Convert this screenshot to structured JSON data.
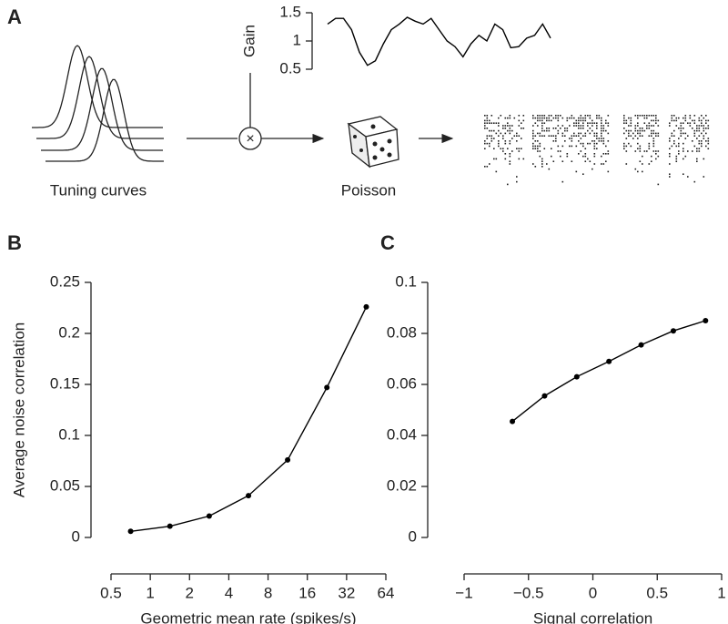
{
  "panel_labels": [
    "A",
    "B",
    "C"
  ],
  "schematic": {
    "tuning_label": "Tuning curves",
    "poisson_label": "Poisson",
    "multiply_symbol": "×"
  },
  "chart_data": [
    {
      "type": "line",
      "ylabel": "Gain",
      "ylim": [
        0.5,
        1.5
      ],
      "yticks": [
        0.5,
        1,
        1.5
      ],
      "color": "#000000",
      "values": [
        1.3,
        1.4,
        1.4,
        1.2,
        0.8,
        0.57,
        0.65,
        0.95,
        1.2,
        1.3,
        1.42,
        1.35,
        1.3,
        1.4,
        1.2,
        1.0,
        0.9,
        0.72,
        0.95,
        1.1,
        1.0,
        1.3,
        1.2,
        0.88,
        0.9,
        1.05,
        1.1,
        1.3,
        1.05
      ]
    },
    {
      "type": "line",
      "xlabel": "Geometric mean rate (spikes/s)",
      "ylabel": "Average noise correlation",
      "xscale": "log",
      "xlim": [
        0.5,
        64
      ],
      "xticks": [
        0.5,
        1,
        2,
        4,
        8,
        16,
        32,
        64
      ],
      "ylim": [
        0,
        0.25
      ],
      "yticks": [
        0,
        0.05,
        0.1,
        0.15,
        0.2,
        0.25
      ],
      "color": "#000000",
      "x": [
        0.707,
        1.414,
        2.83,
        5.66,
        11.3,
        22.6,
        45.3
      ],
      "values": [
        0.006,
        0.011,
        0.021,
        0.041,
        0.076,
        0.147,
        0.226
      ]
    },
    {
      "type": "line",
      "xlabel": "Signal correlation",
      "xscale": "linear",
      "xlim": [
        -1,
        1
      ],
      "xticks": [
        {
          "value": -1,
          "label": "−1"
        },
        {
          "value": -0.5,
          "label": "−0.5"
        },
        0,
        0.5,
        1
      ],
      "ylim": [
        0,
        0.1
      ],
      "yticks": [
        0,
        0.02,
        0.04,
        0.06,
        0.08,
        0.1
      ],
      "color": "#000000",
      "x": [
        -0.625,
        -0.375,
        -0.125,
        0.125,
        0.375,
        0.625,
        0.875
      ],
      "values": [
        0.0455,
        0.0555,
        0.063,
        0.069,
        0.0755,
        0.081,
        0.085
      ]
    }
  ]
}
